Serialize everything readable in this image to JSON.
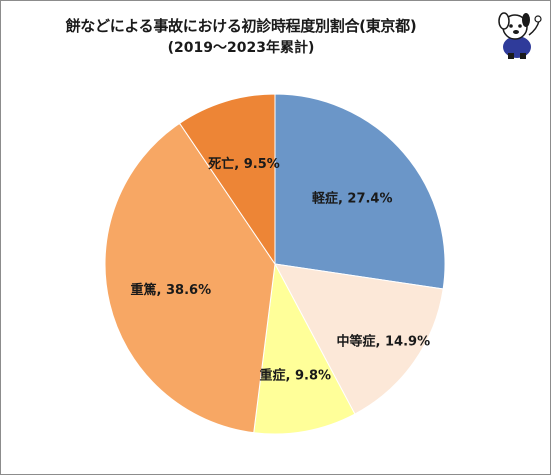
{
  "chart_data": {
    "type": "pie",
    "title": "餅などによる事故における初診時程度別割合(東京都)",
    "subtitle": "(2019〜2023年累計)",
    "slices": [
      {
        "label": "軽症",
        "value": 27.4,
        "display": "軽症, 27.4%",
        "color": "#6b96c8"
      },
      {
        "label": "中等症",
        "value": 14.9,
        "display": "中等症, 14.9%",
        "color": "#fce8d8"
      },
      {
        "label": "重症",
        "value": 9.8,
        "display": "重症, 9.8%",
        "color": "#ffff99"
      },
      {
        "label": "重篤",
        "value": 38.6,
        "display": "重篤, 38.6%",
        "color": "#f7a764"
      },
      {
        "label": "死亡",
        "value": 9.5,
        "display": "死亡, 9.5%",
        "color": "#ed8536"
      }
    ]
  },
  "decoration": {
    "mascot_icon": "cartoon-dog-mascot-icon"
  }
}
